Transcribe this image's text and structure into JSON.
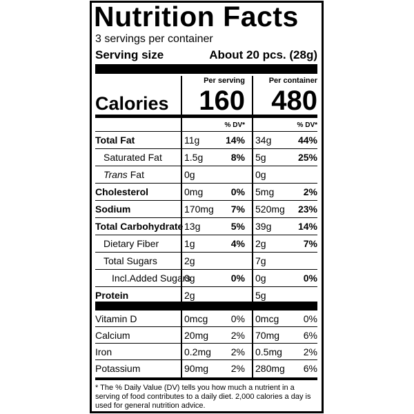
{
  "header": {
    "title": "Nutrition Facts",
    "servings": "3 servings per container",
    "serving_size_label": "Serving size",
    "serving_size": "About 20 pcs. (28g)"
  },
  "columns": {
    "serving": "Per serving",
    "container": "Per container",
    "dv": "% DV*"
  },
  "calories": {
    "label": "Calories",
    "serving": 160,
    "container": 480
  },
  "rows": [
    {
      "name": "Total Fat",
      "bold": true,
      "indent": 0,
      "serving": {
        "amount": "11g",
        "dv": "14%"
      },
      "container": {
        "amount": "34g",
        "dv": "44%"
      }
    },
    {
      "name": "Saturated Fat",
      "bold": false,
      "indent": 1,
      "serving": {
        "amount": "1.5g",
        "dv": "8%"
      },
      "container": {
        "amount": "5g",
        "dv": "25%"
      }
    },
    {
      "name_italic": "Trans",
      "name": "Fat",
      "bold": false,
      "indent": 1,
      "serving": {
        "amount": "0g",
        "dv": null
      },
      "container": {
        "amount": "0g",
        "dv": null
      }
    },
    {
      "name": "Cholesterol",
      "bold": true,
      "indent": 0,
      "serving": {
        "amount": "0mg",
        "dv": "0%"
      },
      "container": {
        "amount": "5mg",
        "dv": "2%"
      }
    },
    {
      "name": "Sodium",
      "bold": true,
      "indent": 0,
      "serving": {
        "amount": "170mg",
        "dv": "7%"
      },
      "container": {
        "amount": "520mg",
        "dv": "23%"
      }
    },
    {
      "name": "Total Carbohydrate",
      "bold": true,
      "indent": 0,
      "serving": {
        "amount": "13g",
        "dv": "5%"
      },
      "container": {
        "amount": "39g",
        "dv": "14%"
      }
    },
    {
      "name": "Dietary Fiber",
      "bold": false,
      "indent": 1,
      "serving": {
        "amount": "1g",
        "dv": "4%"
      },
      "container": {
        "amount": "2g",
        "dv": "7%"
      }
    },
    {
      "name": "Total Sugars",
      "bold": false,
      "indent": 1,
      "serving": {
        "amount": "2g",
        "dv": null
      },
      "container": {
        "amount": "7g",
        "dv": null
      }
    },
    {
      "name": "Incl.Added Sugars",
      "bold": false,
      "indent": 2,
      "serving": {
        "amount": "0g",
        "dv": "0%"
      },
      "container": {
        "amount": "0g",
        "dv": "0%"
      }
    },
    {
      "name": "Protein",
      "bold": true,
      "indent": 0,
      "serving": {
        "amount": "2g",
        "dv": null
      },
      "container": {
        "amount": "5g",
        "dv": null
      }
    }
  ],
  "vitamins": [
    {
      "name": "Vitamin D",
      "serving": {
        "amount": "0mcg",
        "dv": "0%"
      },
      "container": {
        "amount": "0mcg",
        "dv": "0%"
      }
    },
    {
      "name": "Calcium",
      "serving": {
        "amount": "20mg",
        "dv": "2%"
      },
      "container": {
        "amount": "70mg",
        "dv": "6%"
      }
    },
    {
      "name": "Iron",
      "serving": {
        "amount": "0.2mg",
        "dv": "2%"
      },
      "container": {
        "amount": "0.5mg",
        "dv": "2%"
      }
    },
    {
      "name": "Potassium",
      "serving": {
        "amount": "90mg",
        "dv": "2%"
      },
      "container": {
        "amount": "280mg",
        "dv": "6%"
      }
    }
  ],
  "footnote": "* The % Daily Value (DV) tells you how much a nutrient in a serving of food contributes to a daily diet. 2,000 calories a day is used for general nutrition advice."
}
